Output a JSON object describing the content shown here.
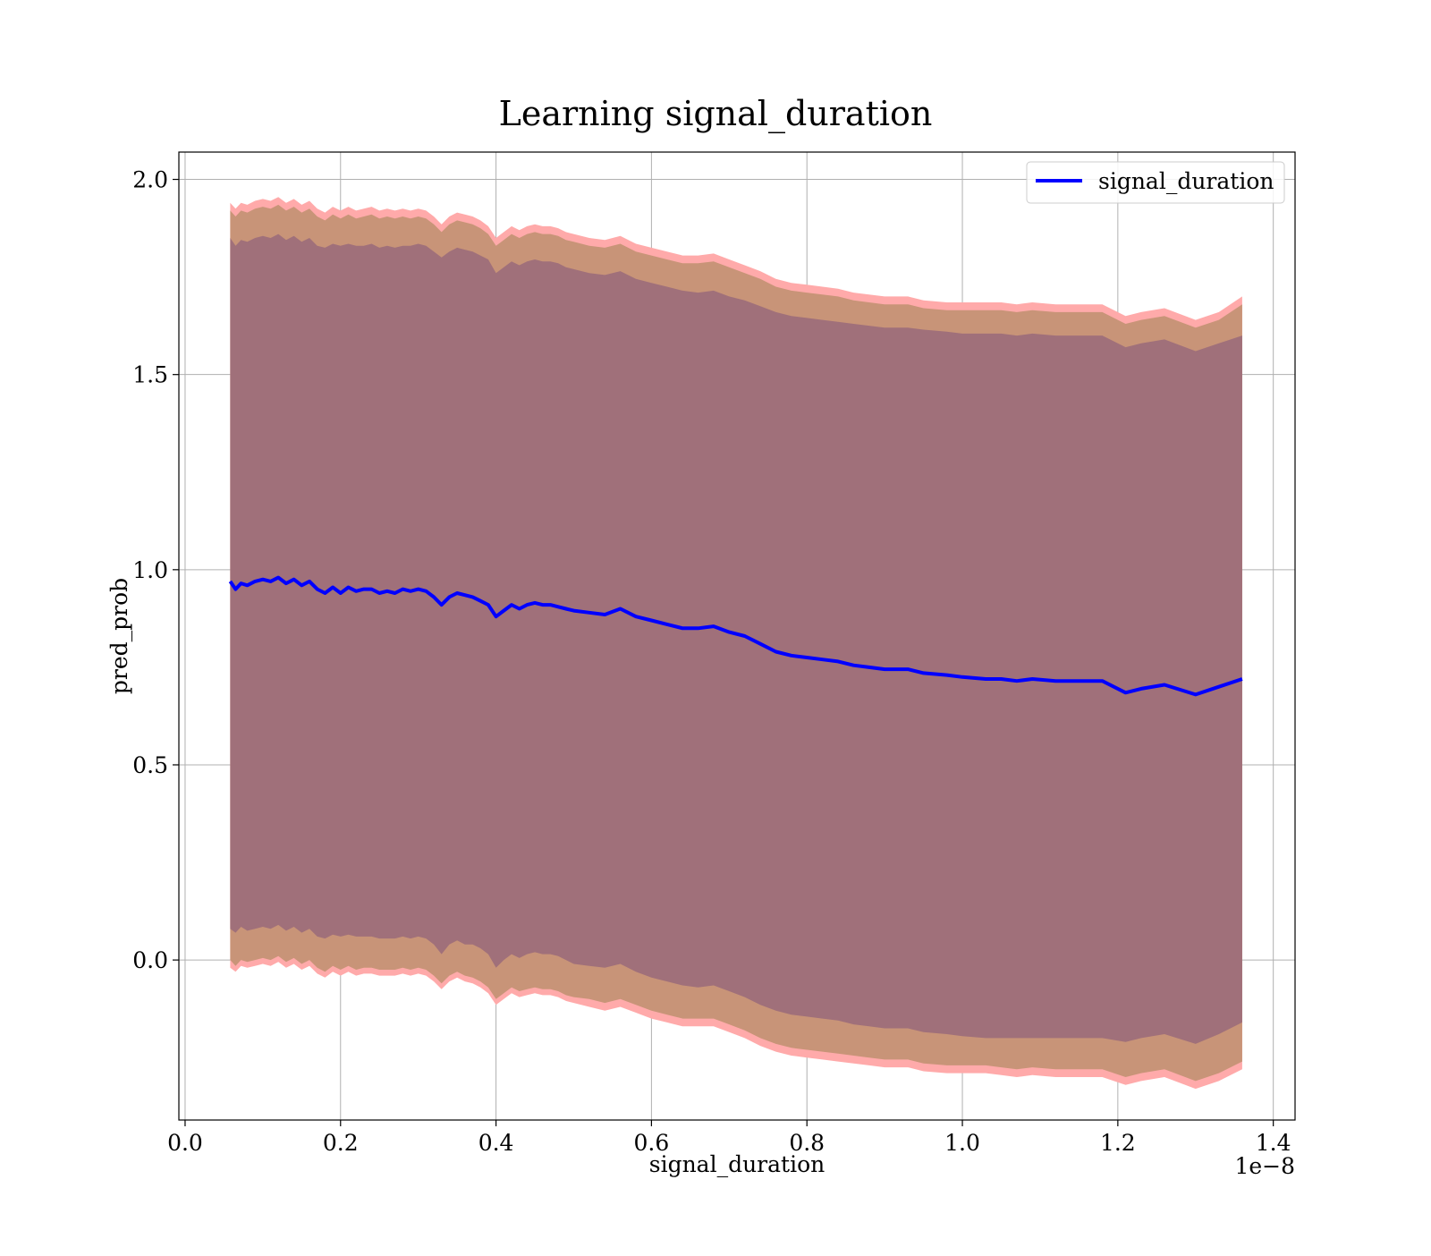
{
  "chart_data": {
    "type": "line",
    "title": "Learning signal_duration",
    "xlabel": "signal_duration",
    "ylabel": "pred_prob",
    "x_offset_label": "1e−8",
    "xlim": [
      -0.008,
      1.428
    ],
    "ylim": [
      -0.41,
      2.07
    ],
    "xticks": [
      0.0,
      0.2,
      0.4,
      0.6,
      0.8,
      1.0,
      1.2,
      1.4
    ],
    "xtick_labels": [
      "0.0",
      "0.2",
      "0.4",
      "0.6",
      "0.8",
      "1.0",
      "1.2",
      "1.4"
    ],
    "yticks": [
      0.0,
      0.5,
      1.0,
      1.5,
      2.0
    ],
    "ytick_labels": [
      "0.0",
      "0.5",
      "1.0",
      "1.5",
      "2.0"
    ],
    "grid": true,
    "legend_position": "upper right",
    "legend": [
      {
        "label": "signal_duration",
        "color": "#0000ff"
      }
    ],
    "colors": {
      "line": "#0000ff",
      "band_outer": "#ffaaaa",
      "band_middle": "#c89478",
      "band_inner": "#a0707a"
    },
    "series": [
      {
        "name": "signal_duration",
        "x": [
          0.058,
          0.065,
          0.072,
          0.08,
          0.09,
          0.1,
          0.11,
          0.12,
          0.13,
          0.14,
          0.15,
          0.16,
          0.17,
          0.18,
          0.19,
          0.2,
          0.21,
          0.22,
          0.23,
          0.24,
          0.25,
          0.26,
          0.27,
          0.28,
          0.29,
          0.3,
          0.31,
          0.32,
          0.33,
          0.34,
          0.35,
          0.36,
          0.37,
          0.38,
          0.39,
          0.4,
          0.41,
          0.42,
          0.43,
          0.44,
          0.45,
          0.46,
          0.47,
          0.48,
          0.49,
          0.5,
          0.52,
          0.54,
          0.56,
          0.58,
          0.6,
          0.62,
          0.64,
          0.66,
          0.68,
          0.7,
          0.72,
          0.74,
          0.76,
          0.78,
          0.8,
          0.82,
          0.84,
          0.86,
          0.88,
          0.9,
          0.93,
          0.95,
          0.98,
          1.0,
          1.03,
          1.05,
          1.07,
          1.09,
          1.12,
          1.15,
          1.18,
          1.21,
          1.23,
          1.26,
          1.3,
          1.33,
          1.36
        ],
        "y": [
          0.97,
          0.95,
          0.965,
          0.96,
          0.97,
          0.975,
          0.97,
          0.98,
          0.965,
          0.975,
          0.96,
          0.97,
          0.95,
          0.94,
          0.955,
          0.94,
          0.955,
          0.945,
          0.95,
          0.95,
          0.94,
          0.945,
          0.94,
          0.95,
          0.945,
          0.95,
          0.945,
          0.93,
          0.91,
          0.93,
          0.94,
          0.935,
          0.93,
          0.92,
          0.91,
          0.88,
          0.895,
          0.91,
          0.9,
          0.91,
          0.915,
          0.91,
          0.91,
          0.905,
          0.9,
          0.895,
          0.89,
          0.885,
          0.9,
          0.88,
          0.87,
          0.86,
          0.85,
          0.85,
          0.855,
          0.84,
          0.83,
          0.81,
          0.79,
          0.78,
          0.775,
          0.77,
          0.765,
          0.755,
          0.75,
          0.745,
          0.745,
          0.735,
          0.73,
          0.725,
          0.72,
          0.72,
          0.715,
          0.72,
          0.715,
          0.715,
          0.715,
          0.685,
          0.695,
          0.705,
          0.68,
          0.7,
          0.72
        ],
        "band_inner_lower": [
          0.08,
          0.07,
          0.085,
          0.075,
          0.08,
          0.085,
          0.08,
          0.09,
          0.075,
          0.085,
          0.07,
          0.08,
          0.06,
          0.055,
          0.065,
          0.06,
          0.065,
          0.06,
          0.06,
          0.06,
          0.055,
          0.055,
          0.055,
          0.06,
          0.055,
          0.06,
          0.055,
          0.04,
          0.015,
          0.04,
          0.05,
          0.04,
          0.04,
          0.03,
          0.015,
          -0.02,
          0.0,
          0.015,
          0.005,
          0.015,
          0.02,
          0.015,
          0.015,
          0.01,
          0.0,
          -0.01,
          -0.015,
          -0.02,
          -0.01,
          -0.03,
          -0.045,
          -0.055,
          -0.065,
          -0.07,
          -0.065,
          -0.08,
          -0.095,
          -0.115,
          -0.13,
          -0.14,
          -0.145,
          -0.15,
          -0.155,
          -0.165,
          -0.17,
          -0.175,
          -0.175,
          -0.185,
          -0.19,
          -0.195,
          -0.2,
          -0.2,
          -0.2,
          -0.2,
          -0.2,
          -0.2,
          -0.2,
          -0.21,
          -0.2,
          -0.19,
          -0.215,
          -0.19,
          -0.16
        ],
        "band_inner_upper": [
          1.85,
          1.83,
          1.845,
          1.84,
          1.85,
          1.855,
          1.85,
          1.86,
          1.845,
          1.855,
          1.84,
          1.85,
          1.83,
          1.825,
          1.835,
          1.83,
          1.835,
          1.83,
          1.83,
          1.835,
          1.825,
          1.83,
          1.825,
          1.83,
          1.83,
          1.835,
          1.83,
          1.815,
          1.8,
          1.815,
          1.825,
          1.82,
          1.815,
          1.805,
          1.795,
          1.76,
          1.775,
          1.79,
          1.78,
          1.79,
          1.795,
          1.79,
          1.79,
          1.785,
          1.775,
          1.77,
          1.76,
          1.755,
          1.765,
          1.745,
          1.735,
          1.725,
          1.715,
          1.71,
          1.715,
          1.7,
          1.69,
          1.675,
          1.66,
          1.65,
          1.645,
          1.64,
          1.635,
          1.63,
          1.625,
          1.62,
          1.62,
          1.615,
          1.61,
          1.605,
          1.605,
          1.605,
          1.6,
          1.605,
          1.6,
          1.6,
          1.6,
          1.57,
          1.58,
          1.59,
          1.56,
          1.58,
          1.6
        ],
        "band_middle_lower": [
          0.0,
          -0.015,
          0.0,
          -0.005,
          0.0,
          0.005,
          0.0,
          0.01,
          -0.005,
          0.005,
          -0.01,
          0.0,
          -0.02,
          -0.03,
          -0.015,
          -0.025,
          -0.015,
          -0.025,
          -0.02,
          -0.02,
          -0.025,
          -0.025,
          -0.025,
          -0.02,
          -0.025,
          -0.02,
          -0.025,
          -0.04,
          -0.06,
          -0.04,
          -0.03,
          -0.04,
          -0.045,
          -0.055,
          -0.07,
          -0.1,
          -0.085,
          -0.07,
          -0.08,
          -0.075,
          -0.07,
          -0.075,
          -0.075,
          -0.08,
          -0.09,
          -0.095,
          -0.1,
          -0.11,
          -0.1,
          -0.115,
          -0.13,
          -0.14,
          -0.15,
          -0.15,
          -0.15,
          -0.165,
          -0.18,
          -0.2,
          -0.215,
          -0.225,
          -0.23,
          -0.235,
          -0.24,
          -0.245,
          -0.25,
          -0.255,
          -0.255,
          -0.265,
          -0.27,
          -0.27,
          -0.27,
          -0.275,
          -0.28,
          -0.275,
          -0.28,
          -0.28,
          -0.28,
          -0.3,
          -0.29,
          -0.28,
          -0.31,
          -0.29,
          -0.26
        ],
        "band_middle_upper": [
          1.92,
          1.905,
          1.92,
          1.915,
          1.925,
          1.93,
          1.925,
          1.935,
          1.92,
          1.93,
          1.915,
          1.925,
          1.905,
          1.895,
          1.91,
          1.9,
          1.91,
          1.9,
          1.905,
          1.91,
          1.9,
          1.905,
          1.9,
          1.905,
          1.9,
          1.905,
          1.9,
          1.885,
          1.865,
          1.885,
          1.895,
          1.89,
          1.885,
          1.875,
          1.86,
          1.83,
          1.845,
          1.86,
          1.85,
          1.86,
          1.865,
          1.86,
          1.86,
          1.855,
          1.845,
          1.84,
          1.83,
          1.825,
          1.835,
          1.815,
          1.805,
          1.795,
          1.785,
          1.785,
          1.79,
          1.775,
          1.76,
          1.745,
          1.725,
          1.715,
          1.71,
          1.705,
          1.7,
          1.69,
          1.685,
          1.68,
          1.68,
          1.67,
          1.665,
          1.665,
          1.665,
          1.665,
          1.66,
          1.665,
          1.66,
          1.66,
          1.66,
          1.63,
          1.64,
          1.65,
          1.62,
          1.64,
          1.68
        ],
        "band_outer_lower": [
          -0.02,
          -0.03,
          -0.015,
          -0.02,
          -0.015,
          -0.01,
          -0.015,
          -0.005,
          -0.02,
          -0.01,
          -0.025,
          -0.015,
          -0.035,
          -0.045,
          -0.03,
          -0.04,
          -0.03,
          -0.04,
          -0.035,
          -0.035,
          -0.04,
          -0.04,
          -0.04,
          -0.035,
          -0.04,
          -0.035,
          -0.04,
          -0.055,
          -0.075,
          -0.055,
          -0.045,
          -0.055,
          -0.06,
          -0.07,
          -0.085,
          -0.115,
          -0.1,
          -0.085,
          -0.095,
          -0.09,
          -0.085,
          -0.09,
          -0.09,
          -0.095,
          -0.105,
          -0.11,
          -0.12,
          -0.13,
          -0.12,
          -0.135,
          -0.15,
          -0.16,
          -0.17,
          -0.17,
          -0.17,
          -0.185,
          -0.2,
          -0.22,
          -0.235,
          -0.245,
          -0.25,
          -0.255,
          -0.26,
          -0.265,
          -0.27,
          -0.275,
          -0.275,
          -0.285,
          -0.29,
          -0.29,
          -0.29,
          -0.295,
          -0.3,
          -0.295,
          -0.3,
          -0.3,
          -0.3,
          -0.32,
          -0.31,
          -0.3,
          -0.33,
          -0.31,
          -0.28
        ],
        "band_outer_upper": [
          1.94,
          1.925,
          1.94,
          1.935,
          1.945,
          1.95,
          1.945,
          1.955,
          1.94,
          1.95,
          1.935,
          1.945,
          1.925,
          1.915,
          1.93,
          1.92,
          1.93,
          1.92,
          1.925,
          1.93,
          1.92,
          1.925,
          1.92,
          1.925,
          1.92,
          1.925,
          1.92,
          1.905,
          1.885,
          1.905,
          1.915,
          1.91,
          1.905,
          1.895,
          1.88,
          1.85,
          1.865,
          1.88,
          1.87,
          1.88,
          1.885,
          1.88,
          1.88,
          1.875,
          1.865,
          1.86,
          1.85,
          1.845,
          1.855,
          1.835,
          1.825,
          1.815,
          1.805,
          1.805,
          1.81,
          1.795,
          1.78,
          1.765,
          1.745,
          1.735,
          1.73,
          1.725,
          1.72,
          1.71,
          1.705,
          1.7,
          1.7,
          1.69,
          1.685,
          1.685,
          1.685,
          1.685,
          1.68,
          1.685,
          1.68,
          1.68,
          1.68,
          1.65,
          1.66,
          1.67,
          1.64,
          1.66,
          1.7
        ]
      }
    ]
  }
}
